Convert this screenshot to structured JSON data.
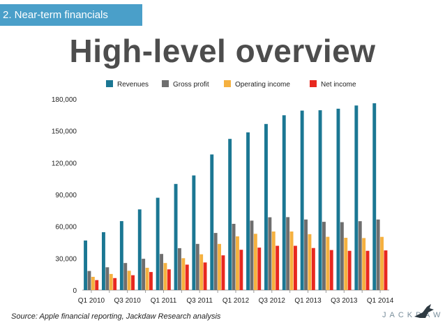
{
  "section_label": "2. Near-term financials",
  "title": "High-level overview",
  "source": "Source: Apple financial reporting, Jackdaw Research analysis",
  "brand": "JACKDAW",
  "chart_data": {
    "type": "bar",
    "categories": [
      "Q1 2010",
      "Q2 2010",
      "Q3 2010",
      "Q4 2010",
      "Q1 2011",
      "Q2 2011",
      "Q3 2011",
      "Q4 2011",
      "Q1 2012",
      "Q2 2012",
      "Q3 2012",
      "Q4 2012",
      "Q1 2013",
      "Q2 2013",
      "Q3 2013",
      "Q4 2013",
      "Q1 2014"
    ],
    "tick_labels": [
      "Q1 2010",
      "",
      "Q3 2010",
      "",
      "Q1 2011",
      "",
      "Q3 2011",
      "",
      "Q1 2012",
      "",
      "Q3 2012",
      "",
      "Q1 2013",
      "",
      "Q3 2013",
      "",
      "Q1 2014"
    ],
    "series": [
      {
        "name": "Revenues",
        "color": "#1b7793",
        "values": [
          46700,
          54500,
          65000,
          76000,
          87000,
          100000,
          108000,
          127800,
          142400,
          148600,
          156500,
          164700,
          169100,
          169400,
          170900,
          173900,
          176000
        ]
      },
      {
        "name": "Gross profit",
        "color": "#6e6e6e",
        "values": [
          18000,
          21500,
          25500,
          29500,
          34000,
          39500,
          43500,
          53800,
          62400,
          65400,
          68600,
          68700,
          66500,
          64300,
          64000,
          64900,
          66500
        ]
      },
      {
        "name": "Operating income",
        "color": "#f5b140",
        "values": [
          12500,
          15200,
          18200,
          21000,
          25500,
          30000,
          33700,
          43500,
          50600,
          53000,
          55200,
          55200,
          52700,
          50200,
          49300,
          49000,
          50100
        ]
      },
      {
        "name": "Net income",
        "color": "#e8281f",
        "values": [
          9400,
          11300,
          14000,
          17000,
          19500,
          24000,
          26000,
          32700,
          38000,
          40000,
          41700,
          41700,
          39600,
          37700,
          37000,
          37000,
          37400
        ]
      }
    ],
    "y_ticks": [
      "0",
      "30,000",
      "60,000",
      "90,000",
      "120,000",
      "150,000",
      "180,000"
    ],
    "ylim": [
      0,
      180000
    ],
    "legend_position": "top"
  }
}
